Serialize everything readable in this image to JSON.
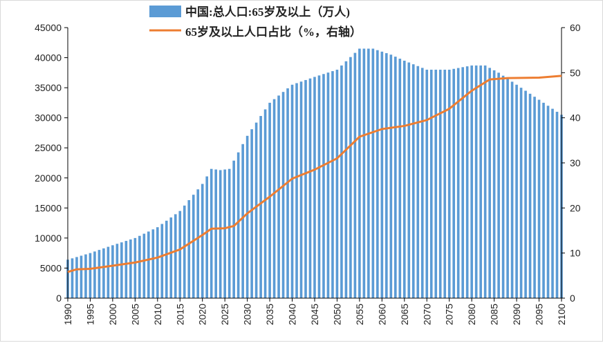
{
  "colors": {
    "bar": "#5b9bd5",
    "line": "#ed7d31",
    "axis": "#000000",
    "text": "#222222"
  },
  "chart_data": {
    "type": "bar+line",
    "title": "",
    "legend": {
      "position": "top",
      "bar_label": "中国:总人口:65岁及以上（万人)",
      "line_label": "65岁及以上人口占比（%，右轴）"
    },
    "x_ticks": [
      "1990",
      "1995",
      "2000",
      "2005",
      "2010",
      "2015",
      "2020",
      "2025",
      "2030",
      "2035",
      "2040",
      "2045",
      "2050",
      "2055",
      "2060",
      "2065",
      "2070",
      "2075",
      "2080",
      "2085",
      "2090",
      "2095",
      "2100"
    ],
    "y_left": {
      "label": "",
      "ylim": [
        0,
        45000
      ],
      "ticks": [
        "0",
        "5000",
        "10000",
        "15000",
        "20000",
        "25000",
        "30000",
        "35000",
        "40000",
        "45000"
      ]
    },
    "y_right": {
      "label": "",
      "ylim": [
        0,
        60
      ],
      "ticks": [
        "0",
        "10",
        "20",
        "30",
        "40",
        "50",
        "60"
      ]
    },
    "years_start": 1990,
    "years_end": 2100,
    "series": [
      {
        "name": "中国:总人口:65岁及以上（万人)",
        "type": "bar",
        "axis": "left",
        "points": [
          [
            1990,
            6400
          ],
          [
            1995,
            7500
          ],
          [
            2000,
            8800
          ],
          [
            2005,
            10000
          ],
          [
            2010,
            11800
          ],
          [
            2015,
            14500
          ],
          [
            2020,
            19000
          ],
          [
            2022,
            21500
          ],
          [
            2024,
            21300
          ],
          [
            2026,
            21500
          ],
          [
            2030,
            27000
          ],
          [
            2035,
            32500
          ],
          [
            2040,
            35500
          ],
          [
            2045,
            36800
          ],
          [
            2050,
            38000
          ],
          [
            2055,
            41500
          ],
          [
            2058,
            41500
          ],
          [
            2062,
            40500
          ],
          [
            2065,
            39500
          ],
          [
            2070,
            38000
          ],
          [
            2075,
            38000
          ],
          [
            2080,
            38700
          ],
          [
            2083,
            38700
          ],
          [
            2086,
            37500
          ],
          [
            2090,
            35500
          ],
          [
            2095,
            33000
          ],
          [
            2100,
            30500
          ]
        ]
      },
      {
        "name": "65岁及以上人口占比（%，右轴）",
        "type": "line",
        "axis": "right",
        "points": [
          [
            1990,
            5.8
          ],
          [
            1992,
            6.4
          ],
          [
            1995,
            6.5
          ],
          [
            2000,
            7.2
          ],
          [
            2005,
            7.9
          ],
          [
            2010,
            9.0
          ],
          [
            2015,
            10.8
          ],
          [
            2020,
            14.0
          ],
          [
            2022,
            15.4
          ],
          [
            2025,
            15.5
          ],
          [
            2027,
            16.0
          ],
          [
            2030,
            18.8
          ],
          [
            2035,
            22.5
          ],
          [
            2040,
            26.5
          ],
          [
            2045,
            28.5
          ],
          [
            2050,
            31.0
          ],
          [
            2055,
            35.8
          ],
          [
            2060,
            37.5
          ],
          [
            2065,
            38.2
          ],
          [
            2070,
            39.5
          ],
          [
            2075,
            42.0
          ],
          [
            2080,
            46.0
          ],
          [
            2084,
            48.5
          ],
          [
            2088,
            48.8
          ],
          [
            2095,
            48.9
          ],
          [
            2100,
            49.3
          ]
        ]
      }
    ]
  }
}
